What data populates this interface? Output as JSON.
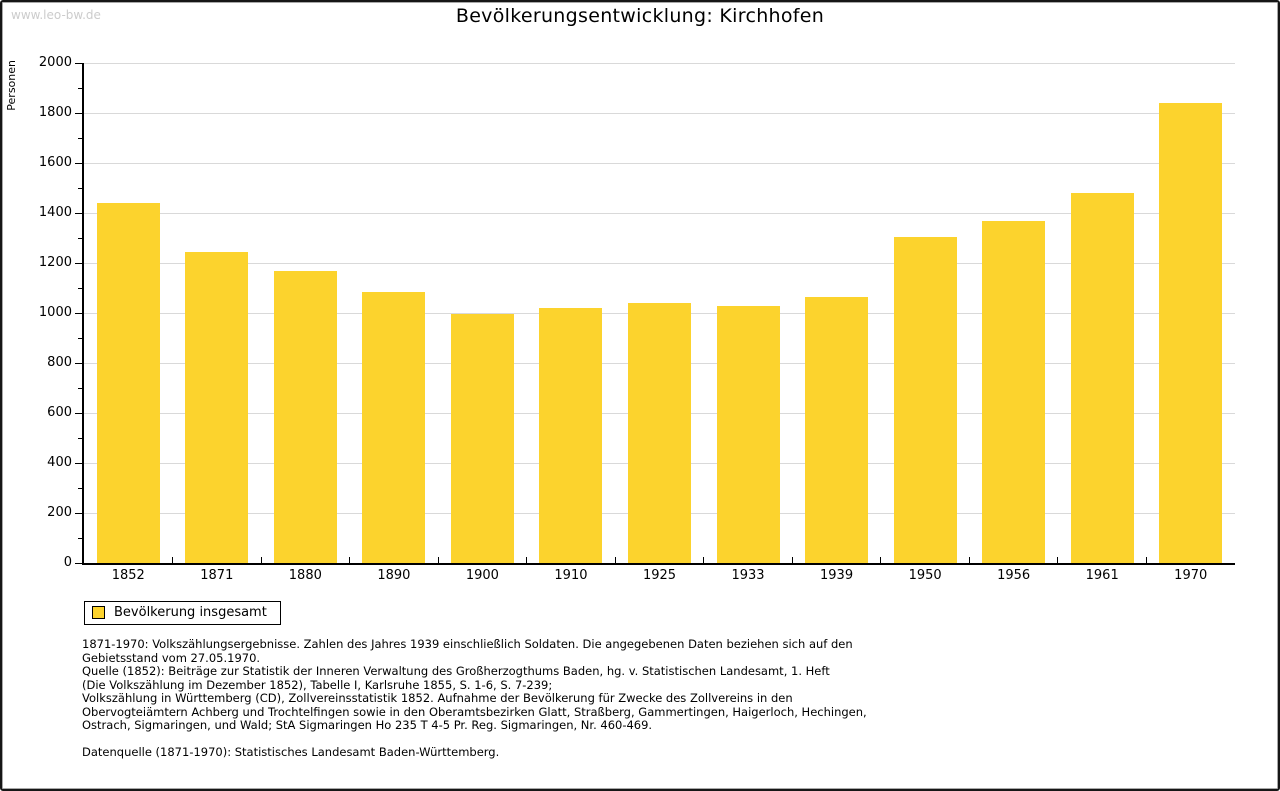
{
  "page": {
    "watermark": "www.leo-bw.de",
    "title": "Bevölkerungsentwicklung: Kirchhofen"
  },
  "chart_data": {
    "type": "bar",
    "title": "Bevölkerungsentwicklung: Kirchhofen",
    "xlabel": "",
    "ylabel": "Personen",
    "ylim": [
      0,
      2000
    ],
    "ytick_step": 200,
    "minor_tick_step": 100,
    "grid": true,
    "legend_position": "below-left",
    "bar_color": "#fcd32d",
    "gridline_color": "#d9d9d9",
    "categories": [
      "1852",
      "1871",
      "1880",
      "1890",
      "1900",
      "1910",
      "1925",
      "1933",
      "1939",
      "1950",
      "1956",
      "1961",
      "1970"
    ],
    "series": [
      {
        "name": "Bevölkerung insgesamt",
        "values": [
          1440,
          1245,
          1170,
          1085,
          995,
          1020,
          1040,
          1030,
          1065,
          1305,
          1370,
          1480,
          1840
        ]
      }
    ]
  },
  "legend": {
    "label": "Bevölkerung insgesamt",
    "swatch_color": "#fcd32d"
  },
  "footnotes": {
    "lines": [
      "1871-1970: Volkszählungsergebnisse. Zahlen des Jahres 1939 einschließlich Soldaten. Die angegebenen Daten beziehen sich auf den",
      "Gebietsstand vom 27.05.1970.",
      "Quelle (1852): Beiträge zur Statistik der Inneren Verwaltung des Großherzogthums Baden, hg. v. Statistischen Landesamt, 1. Heft",
      "(Die Volkszählung im Dezember 1852), Tabelle I, Karlsruhe 1855, S. 1-6, S. 7-239;",
      "Volkszählung in Württemberg (CD), Zollvereinsstatistik 1852. Aufnahme der Bevölkerung für Zwecke des Zollvereins in den",
      "Obervogteiämtern Achberg und Trochtelfingen sowie in den Oberamtsbezirken Glatt, Straßberg, Gammertingen, Haigerloch, Hechingen,",
      "Ostrach, Sigmaringen, und Wald; StA Sigmaringen Ho 235 T 4-5 Pr. Reg. Sigmaringen, Nr. 460-469.",
      "",
      "Datenquelle (1871-1970): Statistisches Landesamt Baden-Württemberg."
    ]
  }
}
